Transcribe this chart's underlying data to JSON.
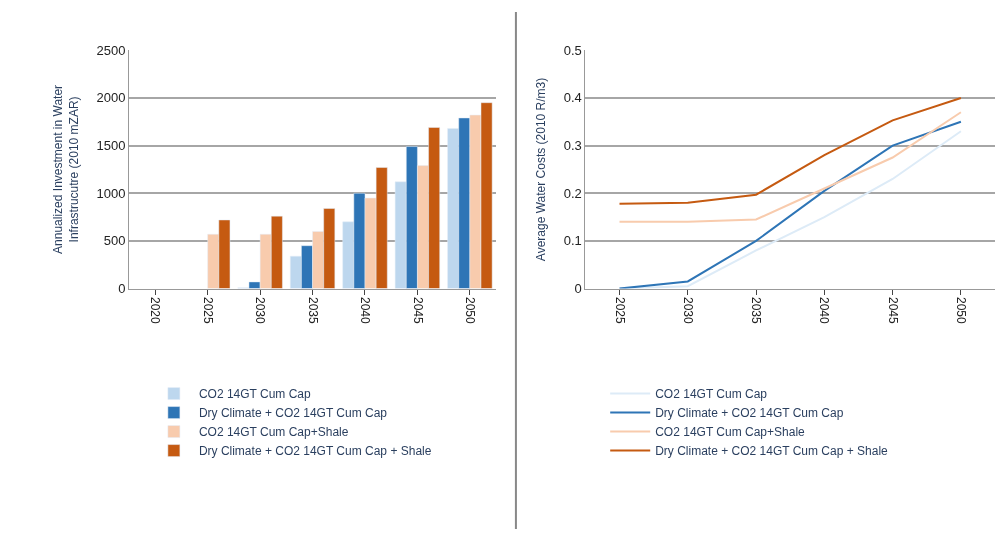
{
  "chart_data": [
    {
      "type": "bar",
      "ylabel": "Annualized Investment in Water Infrastrucutre (2010 mZAR)",
      "categories": [
        "2020",
        "2025",
        "2030",
        "2035",
        "2040",
        "2045",
        "2050"
      ],
      "ylim": [
        0,
        2500
      ],
      "yticks": [
        0,
        500,
        1000,
        1500,
        2000,
        2500
      ],
      "grid": "y",
      "legend": "bottom",
      "series": [
        {
          "name": "CO2 14GT Cum Cap",
          "color": "#bdd7ee",
          "values": [
            null,
            null,
            10,
            340,
            700,
            1120,
            1680
          ]
        },
        {
          "name": "Dry Climate + CO2 14GT Cum Cap",
          "color": "#2e75b6",
          "values": [
            null,
            null,
            70,
            450,
            1000,
            1490,
            1790
          ]
        },
        {
          "name": "CO2 14GT Cum Cap+Shale",
          "color": "#f8cbad",
          "values": [
            null,
            570,
            570,
            600,
            950,
            1290,
            1820
          ]
        },
        {
          "name": "Dry Climate + CO2 14GT Cum Cap + Shale",
          "color": "#c55a11",
          "values": [
            null,
            720,
            760,
            840,
            1270,
            1690,
            1950
          ]
        }
      ]
    },
    {
      "type": "line",
      "ylabel": "Average Water Costs (2010 R/m3)",
      "categories": [
        "2025",
        "2030",
        "2035",
        "2040",
        "2045",
        "2050"
      ],
      "ylim": [
        0,
        0.5
      ],
      "yticks": [
        0,
        0.1,
        0.2,
        0.3,
        0.4,
        0.5
      ],
      "grid": "y",
      "legend": "bottom",
      "marker": "none",
      "line_style": "solid",
      "series": [
        {
          "name": "CO2 14GT Cum Cap",
          "color": "#ddebf7",
          "values": [
            0,
            0.005,
            0.08,
            0.15,
            0.23,
            0.33
          ]
        },
        {
          "name": "Dry Climate + CO2 14GT Cum Cap",
          "color": "#2e75b6",
          "values": [
            0,
            0.015,
            0.1,
            0.205,
            0.3,
            0.35
          ]
        },
        {
          "name": "CO2 14GT Cum Cap+Shale",
          "color": "#f8cbad",
          "values": [
            0.14,
            0.14,
            0.145,
            0.21,
            0.275,
            0.37
          ]
        },
        {
          "name": "Dry Climate + CO2 14GT Cum Cap + Shale",
          "color": "#c55a11",
          "values": [
            0.178,
            0.18,
            0.197,
            0.28,
            0.353,
            0.4
          ]
        }
      ]
    }
  ]
}
